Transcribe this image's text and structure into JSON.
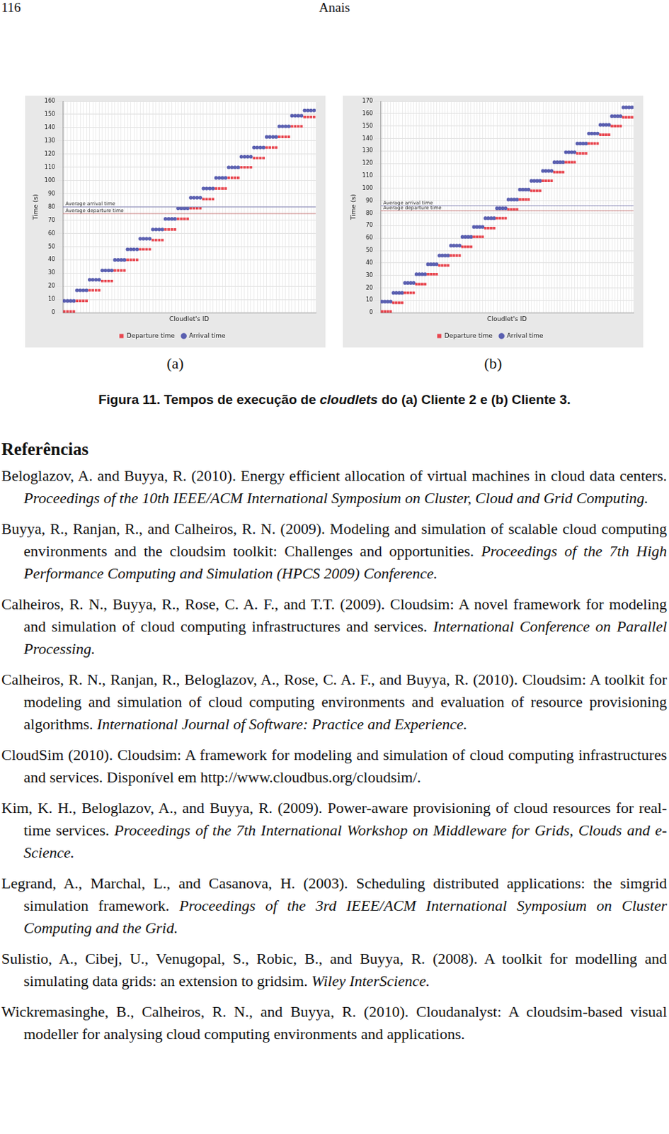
{
  "header": {
    "page": "116",
    "title": "Anais"
  },
  "chart_data": [
    {
      "type": "line",
      "panel_label": "(a)",
      "x_label": "Cloudlet's ID",
      "y_label": "Time (s)",
      "categories": [
        null,
        null,
        null,
        null,
        null,
        null,
        null,
        null,
        null,
        null,
        null,
        null,
        null,
        null,
        null,
        null,
        null,
        null,
        null,
        null,
        null,
        null,
        null,
        null,
        null,
        null,
        null,
        null,
        null,
        null,
        null,
        null,
        null,
        null,
        null,
        null,
        null,
        null,
        null,
        null,
        null,
        null,
        null,
        null,
        null,
        null,
        null,
        null,
        null,
        null,
        null,
        null,
        null,
        null,
        null,
        null,
        null,
        null,
        null,
        null,
        null,
        null,
        null,
        null,
        null,
        null,
        null,
        null,
        null,
        null,
        null,
        null,
        null,
        null,
        null,
        null,
        null,
        null,
        null,
        null
      ],
      "series": [
        {
          "name": "Departure time",
          "color": "#e8464f",
          "marker": "square",
          "values": [
            1,
            1,
            1,
            1,
            9,
            9,
            9,
            9,
            17,
            17,
            17,
            17,
            24,
            24,
            24,
            24,
            32,
            32,
            32,
            32,
            40,
            40,
            40,
            40,
            48,
            48,
            48,
            48,
            55,
            55,
            55,
            55,
            63,
            63,
            63,
            63,
            71,
            71,
            71,
            71,
            79,
            79,
            79,
            79,
            86,
            86,
            86,
            86,
            94,
            94,
            94,
            94,
            102,
            102,
            102,
            102,
            110,
            110,
            110,
            110,
            117,
            117,
            117,
            117,
            125,
            125,
            125,
            125,
            133,
            133,
            133,
            133,
            141,
            141,
            141,
            141,
            148,
            148,
            148,
            148
          ]
        },
        {
          "name": "Arrival time",
          "color": "#5a5fb0",
          "marker": "circle",
          "values": [
            9,
            9,
            9,
            9,
            17,
            17,
            17,
            17,
            25,
            25,
            25,
            25,
            32,
            32,
            32,
            32,
            40,
            40,
            40,
            40,
            48,
            48,
            48,
            48,
            56,
            56,
            56,
            56,
            63,
            63,
            63,
            63,
            71,
            71,
            71,
            71,
            79,
            79,
            79,
            79,
            87,
            87,
            87,
            87,
            94,
            94,
            94,
            94,
            102,
            102,
            102,
            102,
            110,
            110,
            110,
            110,
            118,
            118,
            118,
            118,
            125,
            125,
            125,
            125,
            133,
            133,
            133,
            133,
            141,
            141,
            141,
            141,
            149,
            149,
            149,
            149,
            153,
            153,
            153,
            153
          ]
        }
      ],
      "annotations": [
        {
          "text": "Average arrival time",
          "y": 80,
          "color": "#8a8ab8"
        },
        {
          "text": "Average departure time",
          "y": 75,
          "color": "#c87f7f"
        }
      ],
      "ylim": [
        0,
        160
      ],
      "yticks": [
        0,
        10,
        20,
        30,
        40,
        50,
        60,
        70,
        80,
        90,
        100,
        110,
        120,
        130,
        140,
        150,
        160
      ],
      "grid": true,
      "tick_labels": "y",
      "legend": "bottom"
    },
    {
      "type": "line",
      "panel_label": "(b)",
      "x_label": "Cloudlet's ID",
      "y_label": "Time (s)",
      "categories": [
        null,
        null,
        null,
        null,
        null,
        null,
        null,
        null,
        null,
        null,
        null,
        null,
        null,
        null,
        null,
        null,
        null,
        null,
        null,
        null,
        null,
        null,
        null,
        null,
        null,
        null,
        null,
        null,
        null,
        null,
        null,
        null,
        null,
        null,
        null,
        null,
        null,
        null,
        null,
        null,
        null,
        null,
        null,
        null,
        null,
        null,
        null,
        null,
        null,
        null,
        null,
        null,
        null,
        null,
        null,
        null,
        null,
        null,
        null,
        null,
        null,
        null,
        null,
        null,
        null,
        null,
        null,
        null,
        null,
        null,
        null,
        null,
        null,
        null,
        null,
        null,
        null,
        null,
        null,
        null,
        null,
        null,
        null,
        null,
        null,
        null,
        null,
        null
      ],
      "series": [
        {
          "name": "Departure time",
          "color": "#e8464f",
          "marker": "square",
          "values": [
            1,
            1,
            1,
            1,
            8,
            8,
            8,
            8,
            16,
            16,
            16,
            16,
            23,
            23,
            23,
            23,
            31,
            31,
            31,
            31,
            38,
            38,
            38,
            38,
            46,
            46,
            46,
            46,
            53,
            53,
            53,
            53,
            61,
            61,
            61,
            61,
            68,
            68,
            68,
            68,
            76,
            76,
            76,
            76,
            83,
            83,
            83,
            83,
            91,
            91,
            91,
            91,
            98,
            98,
            98,
            98,
            106,
            106,
            106,
            106,
            113,
            113,
            113,
            113,
            121,
            121,
            121,
            121,
            128,
            128,
            128,
            128,
            136,
            136,
            136,
            136,
            143,
            143,
            143,
            143,
            150,
            150,
            150,
            150,
            157,
            157,
            157,
            157
          ]
        },
        {
          "name": "Arrival time",
          "color": "#5a5fb0",
          "marker": "circle",
          "values": [
            9,
            9,
            9,
            9,
            16,
            16,
            16,
            16,
            24,
            24,
            24,
            24,
            31,
            31,
            31,
            31,
            39,
            39,
            39,
            39,
            46,
            46,
            46,
            46,
            54,
            54,
            54,
            54,
            61,
            61,
            61,
            61,
            69,
            69,
            69,
            69,
            76,
            76,
            76,
            76,
            84,
            84,
            84,
            84,
            91,
            91,
            91,
            91,
            99,
            99,
            99,
            99,
            106,
            106,
            106,
            106,
            114,
            114,
            114,
            114,
            121,
            121,
            121,
            121,
            129,
            129,
            129,
            129,
            136,
            136,
            136,
            136,
            144,
            144,
            144,
            144,
            151,
            151,
            151,
            151,
            158,
            158,
            158,
            158,
            165,
            165,
            165,
            165
          ]
        }
      ],
      "annotations": [
        {
          "text": "Average arrival time",
          "y": 86,
          "color": "#8a8ab8"
        },
        {
          "text": "Average departure time",
          "y": 82,
          "color": "#c87f7f"
        }
      ],
      "ylim": [
        0,
        170
      ],
      "yticks": [
        0,
        10,
        20,
        30,
        40,
        50,
        60,
        70,
        80,
        90,
        100,
        110,
        120,
        130,
        140,
        150,
        160,
        170
      ],
      "grid": true,
      "tick_labels": "y",
      "legend": "bottom"
    }
  ],
  "caption": {
    "label": "Figura 11.",
    "parts": [
      {
        "text": "Tempos de execução de "
      },
      {
        "text": "cloudlets",
        "italic": true
      },
      {
        "text": " do (a) Cliente 2 e (b) Cliente 3."
      }
    ]
  },
  "references": {
    "title": "Referências",
    "items": [
      {
        "text": "Beloglazov, A. and Buyya, R. (2010). Energy efficient allocation of virtual machines in cloud data centers.",
        "venue": "Proceedings of the 10th IEEE/ACM International Symposium on Cluster, Cloud and Grid Computing."
      },
      {
        "text": "Buyya, R., Ranjan, R., and Calheiros, R. N. (2009). Modeling and simulation of scalable cloud computing environments and the cloudsim toolkit: Challenges and opportunities.",
        "venue": "Proceedings of the 7th High Performance Computing and Simulation (HPCS 2009) Conference."
      },
      {
        "text": "Calheiros, R. N., Buyya, R., Rose, C. A. F., and T.T. (2009). Cloudsim: A novel framework for modeling and simulation of cloud computing infrastructures and services.",
        "venue": "International Conference on Parallel Processing."
      },
      {
        "text": "Calheiros, R. N., Ranjan, R., Beloglazov, A., Rose, C. A. F., and Buyya, R. (2010). Cloudsim: A toolkit for modeling and simulation of cloud computing environments and evaluation of resource provisioning algorithms.",
        "venue": "International Journal of Software: Practice and Experience."
      },
      {
        "text": "CloudSim (2010). Cloudsim: A framework for modeling and simulation of cloud computing infrastructures and services. Disponível em http://www.cloudbus.org/cloudsim/."
      },
      {
        "text": "Kim, K. H., Beloglazov, A., and Buyya, R. (2009). Power-aware provisioning of cloud resources for real-time services.",
        "venue": "Proceedings of the 7th International Workshop on Middleware for Grids, Clouds and e-Science."
      },
      {
        "text": "Legrand, A., Marchal, L., and Casanova, H. (2003). Scheduling distributed applications: the simgrid simulation framework.",
        "venue": "Proceedings of the 3rd IEEE/ACM International Symposium on Cluster Computing and the Grid."
      },
      {
        "text": "Sulistio, A., Cibej, U., Venugopal, S., Robic, B., and Buyya, R. (2008). A toolkit for modelling and simulating data grids: an extension to gridsim.",
        "venue": "Wiley InterScience."
      },
      {
        "text": "Wickremasinghe, B., Calheiros, R. N., and Buyya, R. (2010). Cloudanalyst: A cloudsim-based visual modeller for analysing cloud computing environments and applications."
      }
    ]
  }
}
